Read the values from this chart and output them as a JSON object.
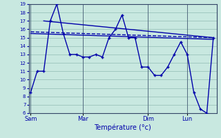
{
  "background_color": "#c8e8e0",
  "grid_color": "#a0c8c0",
  "line_color": "#0000aa",
  "xlabel": "Température (°c)",
  "ylim": [
    6,
    19
  ],
  "yticks": [
    6,
    7,
    8,
    9,
    10,
    11,
    12,
    13,
    14,
    15,
    16,
    17,
    18,
    19
  ],
  "day_labels": [
    "Sam",
    "Mar",
    "Dim",
    "Lun"
  ],
  "day_positions": [
    0,
    8,
    18,
    24
  ],
  "main_line_x": [
    0,
    1,
    2,
    3,
    4,
    5,
    6,
    7,
    8,
    9,
    10,
    11,
    12,
    13,
    14,
    15,
    16,
    17,
    18,
    19,
    20,
    21,
    22,
    23,
    24,
    25,
    26,
    27,
    28
  ],
  "main_line_y": [
    8.5,
    11.0,
    11.0,
    17.0,
    19.0,
    15.5,
    13.0,
    13.0,
    12.7,
    12.7,
    13.0,
    12.7,
    15.0,
    16.0,
    17.7,
    15.0,
    15.0,
    11.5,
    11.5,
    10.5,
    10.5,
    11.5,
    13.0,
    14.5,
    13.0,
    8.5,
    6.5,
    6.0,
    15.0
  ],
  "trend1_x": [
    0,
    28
  ],
  "trend1_y": [
    15.7,
    15.0
  ],
  "trend2_x": [
    0,
    28
  ],
  "trend2_y": [
    15.5,
    14.8
  ],
  "trend3_x": [
    2,
    28
  ],
  "trend3_y": [
    17.0,
    15.0
  ],
  "vline_positions": [
    0,
    8,
    18,
    24
  ],
  "xlim": [
    -0.3,
    28.5
  ],
  "tick_fontsize": 5,
  "xlabel_fontsize": 7,
  "linewidth": 1.0,
  "marker_size": 3.5
}
